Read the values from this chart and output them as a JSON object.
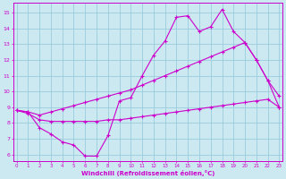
{
  "xlabel": "Windchill (Refroidissement éolien,°C)",
  "bg_color": "#cce8f0",
  "line_color": "#cc00cc",
  "grid_color": "#99ccdd",
  "x_ticks": [
    0,
    1,
    2,
    3,
    4,
    5,
    6,
    7,
    8,
    9,
    10,
    11,
    12,
    13,
    14,
    15,
    16,
    17,
    18,
    19,
    20,
    21,
    22,
    23
  ],
  "y_ticks": [
    6,
    7,
    8,
    9,
    10,
    11,
    12,
    13,
    14,
    15
  ],
  "xlim": [
    -0.3,
    23.3
  ],
  "ylim": [
    5.6,
    15.6
  ],
  "line1_x": [
    0,
    1,
    2,
    3,
    4,
    5,
    6,
    7,
    8,
    9,
    10,
    11,
    12,
    13,
    14,
    15,
    16,
    17,
    18,
    19,
    20,
    21,
    22,
    23
  ],
  "line1_y": [
    8.8,
    8.7,
    7.7,
    7.3,
    6.8,
    6.6,
    5.9,
    5.9,
    7.2,
    9.4,
    9.6,
    11.0,
    12.3,
    13.2,
    14.7,
    14.8,
    13.8,
    14.1,
    15.2,
    13.8,
    13.1,
    12.0,
    10.7,
    9.7
  ],
  "line2_x": [
    0,
    1,
    2,
    3,
    4,
    5,
    6,
    7,
    8,
    9,
    10,
    11,
    12,
    13,
    14,
    15,
    16,
    17,
    18,
    19,
    20,
    21,
    22,
    23
  ],
  "line2_y": [
    8.8,
    8.6,
    8.2,
    8.1,
    8.1,
    8.1,
    8.1,
    8.1,
    8.2,
    8.2,
    8.3,
    8.4,
    8.5,
    8.6,
    8.7,
    8.8,
    8.9,
    9.0,
    9.1,
    9.2,
    9.3,
    9.4,
    9.5,
    9.0
  ],
  "line3_x": [
    0,
    1,
    2,
    3,
    4,
    5,
    6,
    7,
    8,
    9,
    10,
    11,
    12,
    13,
    14,
    15,
    16,
    17,
    18,
    19,
    20,
    21,
    22,
    23
  ],
  "line3_y": [
    8.8,
    8.7,
    8.5,
    8.7,
    8.9,
    9.1,
    9.3,
    9.5,
    9.7,
    9.9,
    10.1,
    10.4,
    10.7,
    11.0,
    11.3,
    11.6,
    11.9,
    12.2,
    12.5,
    12.8,
    13.1,
    12.0,
    10.7,
    9.0
  ]
}
